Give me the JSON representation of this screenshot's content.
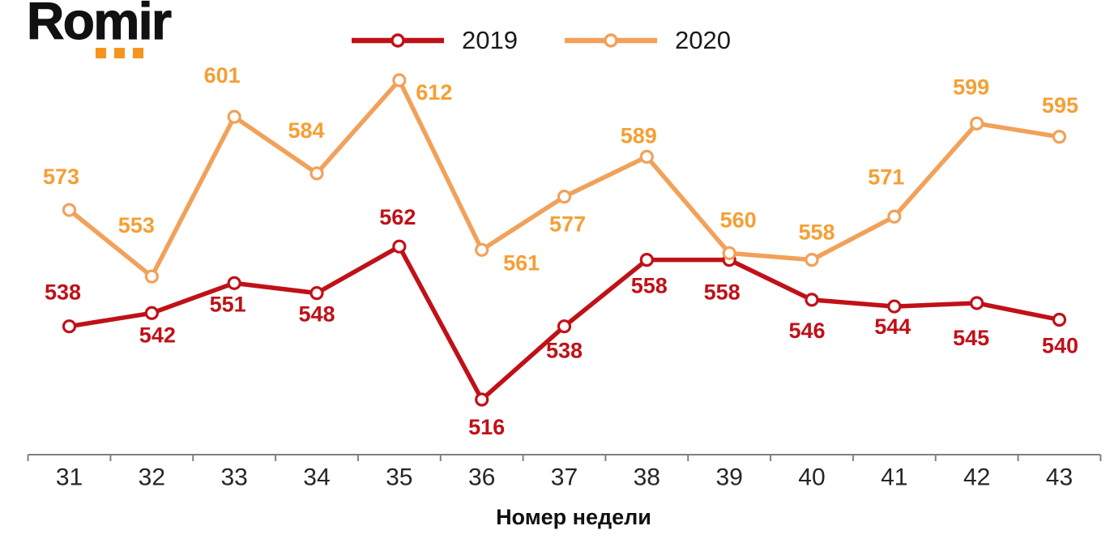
{
  "logo": {
    "text": "Romir",
    "dots_color": "#F7941D"
  },
  "legend": [
    {
      "label": "2019",
      "color": "#C01118"
    },
    {
      "label": "2020",
      "color": "#F1A159"
    }
  ],
  "chart_data": {
    "type": "line",
    "categories": [
      "31",
      "32",
      "33",
      "34",
      "35",
      "36",
      "37",
      "38",
      "39",
      "40",
      "41",
      "42",
      "43"
    ],
    "xlabel": "Номер недели",
    "axis_color": "#808080",
    "tick_label_color": "#262626",
    "series": [
      {
        "name": "2019",
        "color": "#C01118",
        "label_color": "#C01118",
        "values": [
          538,
          542,
          551,
          548,
          562,
          516,
          538,
          558,
          558,
          546,
          544,
          545,
          540
        ],
        "label_offsets": [
          [
            -8,
            -42
          ],
          [
            7,
            27
          ],
          [
            -8,
            26
          ],
          [
            0,
            26
          ],
          [
            -2,
            -36
          ],
          [
            6,
            34
          ],
          [
            0,
            30
          ],
          [
            3,
            32
          ],
          [
            -9,
            40
          ],
          [
            -6,
            38
          ],
          [
            -2,
            25
          ],
          [
            -7,
            43
          ],
          [
            1,
            32
          ]
        ]
      },
      {
        "name": "2020",
        "color": "#F1A159",
        "label_color": "#F59F35",
        "values": [
          573,
          553,
          601,
          584,
          612,
          561,
          577,
          589,
          560,
          558,
          571,
          599,
          595
        ],
        "label_offsets": [
          [
            -10,
            -41
          ],
          [
            -19,
            -63
          ],
          [
            -15,
            -51
          ],
          [
            -13,
            -53
          ],
          [
            43,
            15
          ],
          [
            49,
            16
          ],
          [
            4,
            34
          ],
          [
            -10,
            -26
          ],
          [
            11,
            -41
          ],
          [
            6,
            -34
          ],
          [
            -10,
            -49
          ],
          [
            -7,
            -45
          ],
          [
            1,
            -39
          ]
        ]
      }
    ],
    "ylim": [
      500,
      620
    ],
    "grid": false,
    "legend_position": "top"
  }
}
